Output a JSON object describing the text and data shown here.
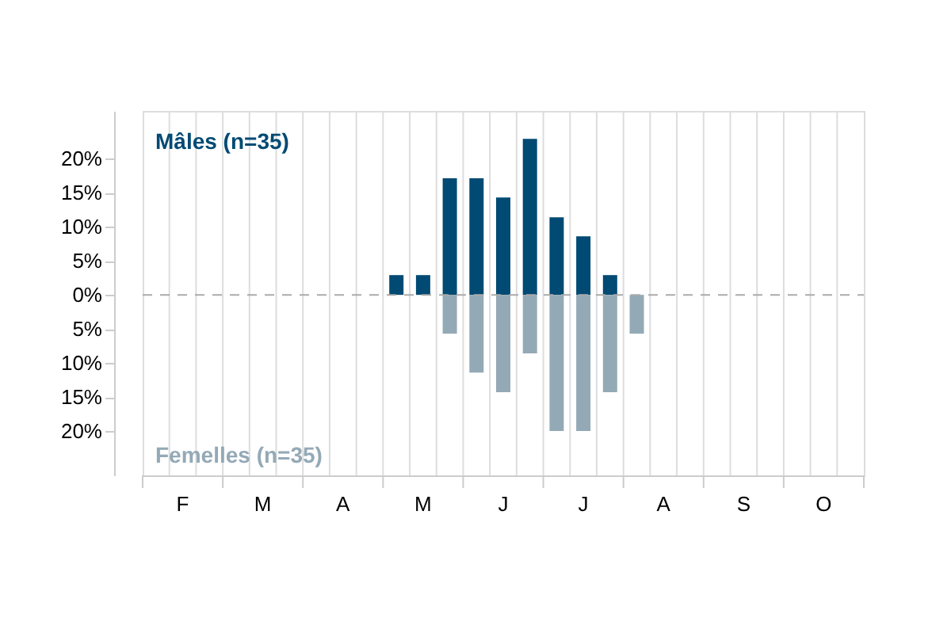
{
  "chart_data": {
    "type": "bar",
    "categories": [
      null,
      "F",
      null,
      null,
      "M",
      null,
      null,
      "A",
      null,
      null,
      "M",
      null,
      null,
      "J",
      null,
      null,
      "J",
      null,
      null,
      "A",
      null,
      null,
      "S",
      null,
      null,
      "O",
      null
    ],
    "ylim": [
      -26.5,
      27
    ],
    "yticks": [
      {
        "value": -20,
        "label": "20%"
      },
      {
        "value": -15,
        "label": "15%"
      },
      {
        "value": -10,
        "label": "10%"
      },
      {
        "value": -5,
        "label": "5%"
      },
      {
        "value": 0,
        "label": "0%"
      },
      {
        "value": 5,
        "label": "5%"
      },
      {
        "value": 10,
        "label": "10%"
      },
      {
        "value": 15,
        "label": "15%"
      },
      {
        "value": 20,
        "label": "20%"
      }
    ],
    "grid": "x",
    "legend": false,
    "ref_lines": [
      {
        "axis": "y",
        "value": 0,
        "color": "#aaaaaa",
        "line_style": "dashed"
      }
    ],
    "series": [
      {
        "name": "Mâles (n=35)",
        "color": "#004a73",
        "values": [
          null,
          null,
          null,
          null,
          null,
          null,
          null,
          null,
          null,
          2.9,
          2.9,
          17.1,
          17.1,
          14.3,
          22.9,
          11.4,
          8.6,
          2.9,
          null,
          null,
          null,
          null,
          null,
          null,
          null,
          null,
          null
        ]
      },
      {
        "name": "Femelles (n=35)",
        "color": "#94a9b6",
        "values": [
          null,
          null,
          null,
          null,
          null,
          null,
          null,
          null,
          null,
          null,
          null,
          -5.7,
          -11.4,
          -14.3,
          -8.6,
          -20.0,
          -20.0,
          -14.3,
          -5.7,
          null,
          null,
          null,
          null,
          null,
          null,
          null,
          null
        ]
      }
    ]
  }
}
